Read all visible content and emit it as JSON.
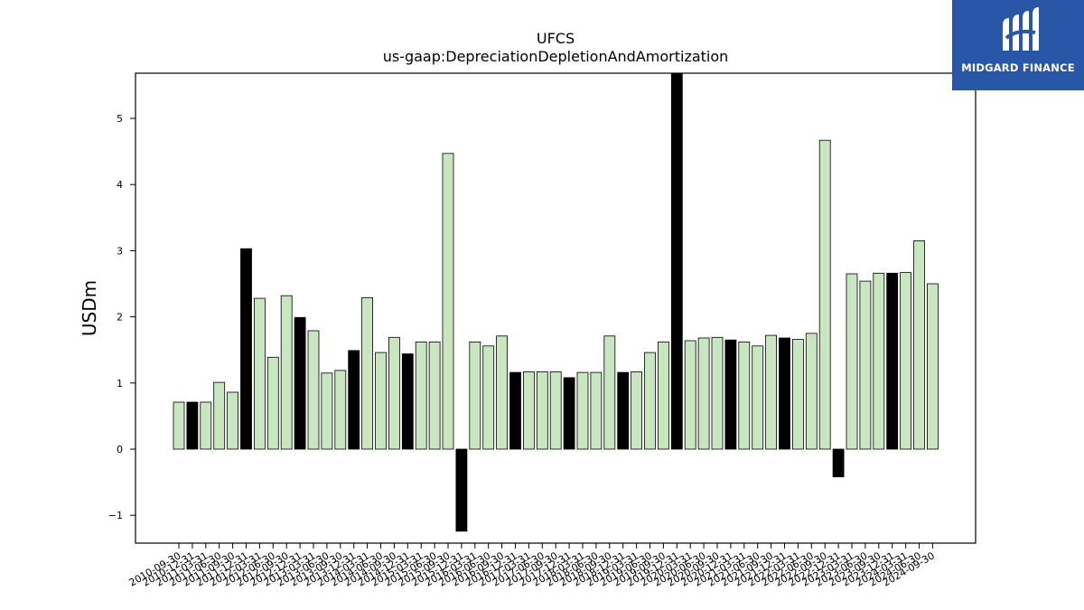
{
  "chart_data": {
    "type": "bar",
    "title": "UFCS",
    "subtitle": "us-gaap:DepreciationDepletionAndAmortization",
    "xlabel": "",
    "ylabel": "USDm",
    "ylim": [
      -1.43,
      5.7
    ],
    "yticks": [
      -1,
      0,
      1,
      2,
      3,
      4,
      5
    ],
    "grid": false,
    "categories": [
      "2010-09-30",
      "2010-12-31",
      "2011-03-31",
      "2011-06-30",
      "2011-09-30",
      "2011-12-31",
      "2012-03-31",
      "2012-06-30",
      "2012-09-30",
      "2012-12-31",
      "2013-03-31",
      "2013-06-30",
      "2013-09-30",
      "2013-12-31",
      "2014-03-31",
      "2014-06-30",
      "2014-09-30",
      "2014-12-31",
      "2015-03-31",
      "2015-06-30",
      "2015-09-30",
      "2015-12-31",
      "2016-03-31",
      "2016-06-30",
      "2016-09-30",
      "2016-12-31",
      "2017-03-31",
      "2017-06-30",
      "2017-09-30",
      "2017-12-31",
      "2018-03-31",
      "2018-06-30",
      "2018-09-30",
      "2018-12-31",
      "2019-03-31",
      "2019-06-30",
      "2019-09-30",
      "2019-12-31",
      "2020-03-31",
      "2020-06-30",
      "2020-09-30",
      "2020-12-31",
      "2021-03-31",
      "2021-06-30",
      "2021-09-30",
      "2021-12-31",
      "2022-03-31",
      "2022-06-30",
      "2022-09-30",
      "2022-12-31",
      "2023-03-31",
      "2023-06-30",
      "2023-09-30",
      "2023-12-31",
      "2024-03-31",
      "2024-06-30",
      "2024-09-30"
    ],
    "values": [
      0.71,
      0.71,
      0.71,
      1.01,
      0.86,
      3.03,
      2.28,
      1.39,
      2.32,
      1.99,
      1.79,
      1.15,
      1.19,
      1.49,
      2.29,
      1.46,
      1.69,
      1.44,
      1.62,
      1.62,
      4.47,
      -1.24,
      1.62,
      1.56,
      1.71,
      1.16,
      1.17,
      1.17,
      1.17,
      1.08,
      1.16,
      1.16,
      1.71,
      1.16,
      1.17,
      1.46,
      1.62,
      5.75,
      1.64,
      1.68,
      1.69,
      1.65,
      1.62,
      1.56,
      1.72,
      1.68,
      1.66,
      1.75,
      4.67,
      -0.42,
      2.65,
      2.54,
      2.66,
      2.66,
      2.67,
      3.15,
      2.5
    ],
    "bar_colors": {
      "quarter": "#c8e6c0",
      "year_end": "#000000"
    },
    "bar_kinds": [
      "q",
      "y",
      "q",
      "q",
      "q",
      "y",
      "q",
      "q",
      "q",
      "y",
      "q",
      "q",
      "q",
      "y",
      "q",
      "q",
      "q",
      "y",
      "q",
      "q",
      "q",
      "y",
      "q",
      "q",
      "q",
      "y",
      "q",
      "q",
      "q",
      "y",
      "q",
      "q",
      "q",
      "y",
      "q",
      "q",
      "q",
      "y",
      "q",
      "q",
      "q",
      "y",
      "q",
      "q",
      "q",
      "y",
      "q",
      "q",
      "q",
      "y",
      "q",
      "q",
      "q",
      "y",
      "q",
      "q",
      "q"
    ]
  },
  "logo": {
    "text": "MIDGARD FINANCE",
    "background": "#2a56a8"
  }
}
